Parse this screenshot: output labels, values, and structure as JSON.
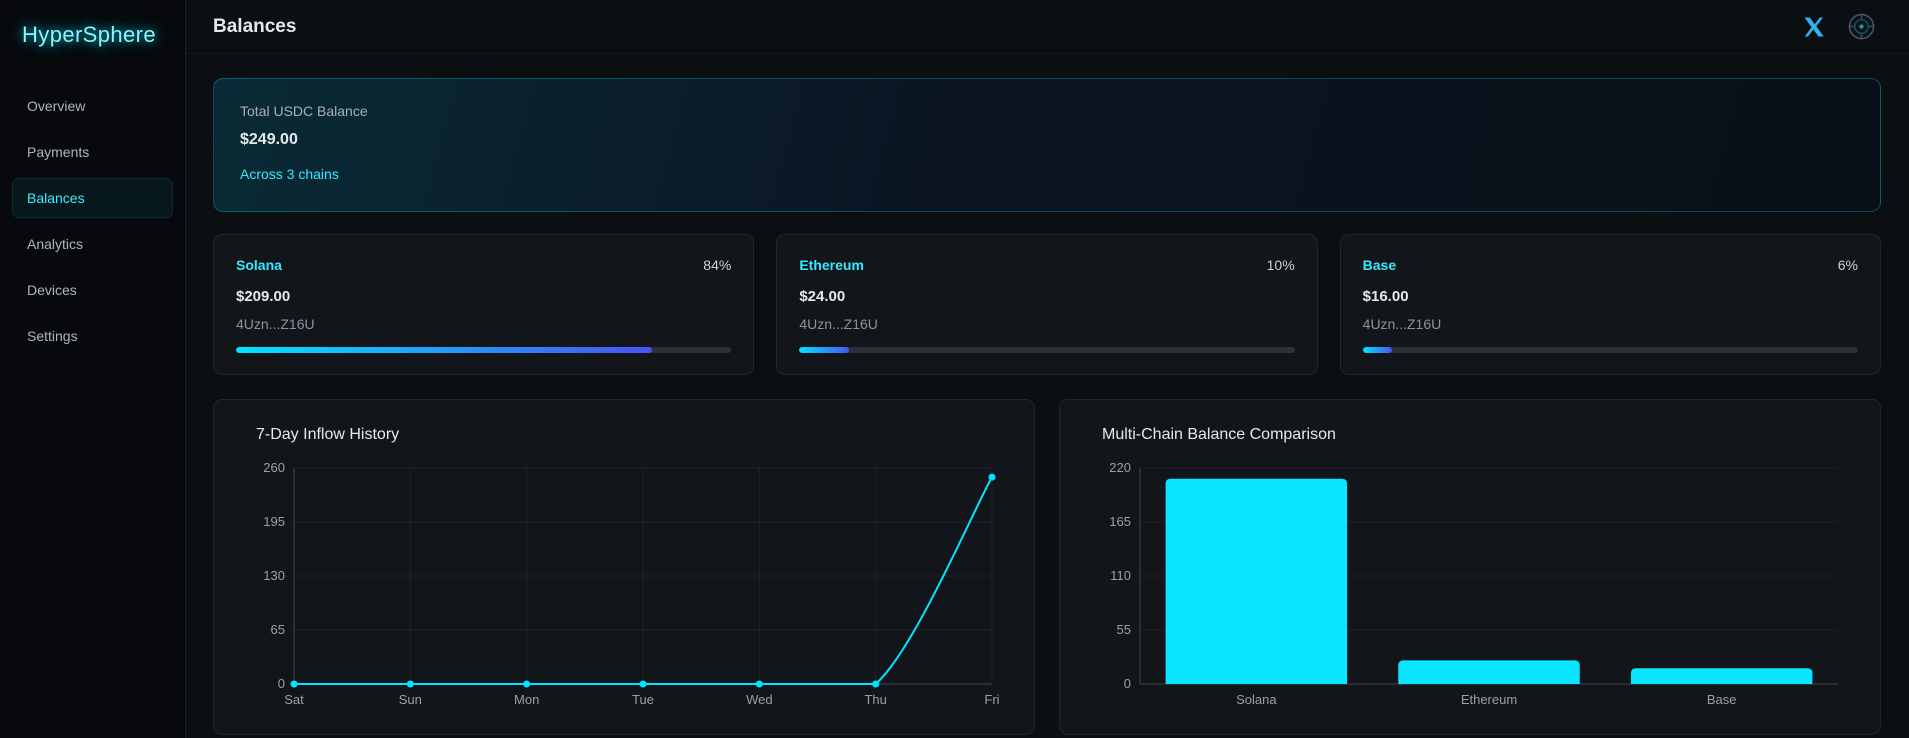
{
  "app": {
    "logo_text": "HyperSphere"
  },
  "sidebar": {
    "items": [
      {
        "label": "Overview",
        "active": false
      },
      {
        "label": "Payments",
        "active": false
      },
      {
        "label": "Balances",
        "active": true
      },
      {
        "label": "Analytics",
        "active": false
      },
      {
        "label": "Devices",
        "active": false
      },
      {
        "label": "Settings",
        "active": false
      }
    ]
  },
  "header": {
    "title": "Balances",
    "icons": [
      "x-social-icon",
      "globe-status-icon"
    ]
  },
  "summary": {
    "label": "Total USDC Balance",
    "amount": "$249.00",
    "link": "Across 3 chains"
  },
  "chains": [
    {
      "name": "Solana",
      "percent": "84%",
      "amount": "$209.00",
      "address": "4Uzn...Z16U",
      "progress_pct": 84
    },
    {
      "name": "Ethereum",
      "percent": "10%",
      "amount": "$24.00",
      "address": "4Uzn...Z16U",
      "progress_pct": 10
    },
    {
      "name": "Base",
      "percent": "6%",
      "amount": "$16.00",
      "address": "4Uzn...Z16U",
      "progress_pct": 6
    }
  ],
  "chart_data": [
    {
      "type": "line",
      "title": "7-Day Inflow History",
      "x": [
        "Sat",
        "Sun",
        "Mon",
        "Tue",
        "Wed",
        "Thu",
        "Fri"
      ],
      "values": [
        0,
        0,
        0,
        0,
        0,
        0,
        249
      ],
      "ylim": [
        0,
        260
      ],
      "yticks": [
        0,
        65,
        130,
        195,
        260
      ],
      "xlabel": "",
      "ylabel": "",
      "grid": true,
      "legend": false
    },
    {
      "type": "bar",
      "title": "Multi-Chain Balance Comparison",
      "categories": [
        "Solana",
        "Ethereum",
        "Base"
      ],
      "values": [
        209,
        24,
        16
      ],
      "ylim": [
        0,
        220
      ],
      "yticks": [
        0,
        55,
        110,
        165,
        220
      ],
      "xlabel": "",
      "ylabel": "",
      "grid": true,
      "legend": false
    }
  ],
  "colors": {
    "accent": "#00e5ff",
    "progress_gradient_end": "#4b52f0",
    "grid": "rgba(255,255,255,0.05)",
    "axis": "#3f464d",
    "bar_fill": "#0ae6ff"
  }
}
